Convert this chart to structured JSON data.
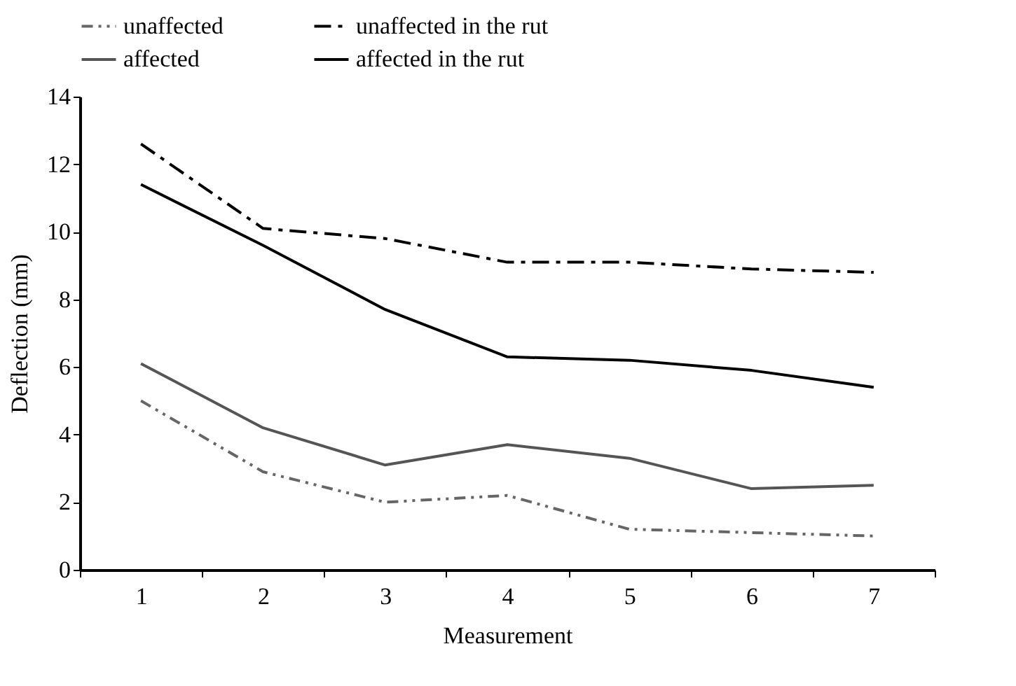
{
  "chart_data": {
    "type": "line",
    "xlabel": "Measurement",
    "ylabel": "Deflection (mm)",
    "categories": [
      "1",
      "2",
      "3",
      "4",
      "5",
      "6",
      "7"
    ],
    "series": [
      {
        "name": "unaffected",
        "color": "#666666",
        "line_style": "dotted",
        "values": [
          5.0,
          2.9,
          2.0,
          2.2,
          1.2,
          1.1,
          1.0
        ]
      },
      {
        "name": "unaffected in the rut",
        "color": "#000000",
        "line_style": "dashed",
        "values": [
          12.6,
          10.1,
          9.8,
          9.1,
          9.1,
          8.9,
          8.8
        ]
      },
      {
        "name": "affected",
        "color": "#555555",
        "line_style": "solid",
        "values": [
          6.1,
          4.2,
          3.1,
          3.7,
          3.3,
          2.4,
          2.5
        ]
      },
      {
        "name": "affected in the rut",
        "color": "#000000",
        "line_style": "solid",
        "values": [
          11.4,
          9.6,
          7.7,
          6.3,
          6.2,
          5.9,
          5.4
        ]
      }
    ],
    "ylim": [
      0,
      14
    ],
    "yticks": [
      0,
      2,
      4,
      6,
      8,
      10,
      12,
      14
    ],
    "grid": false,
    "legend": "top",
    "marker": "none"
  }
}
